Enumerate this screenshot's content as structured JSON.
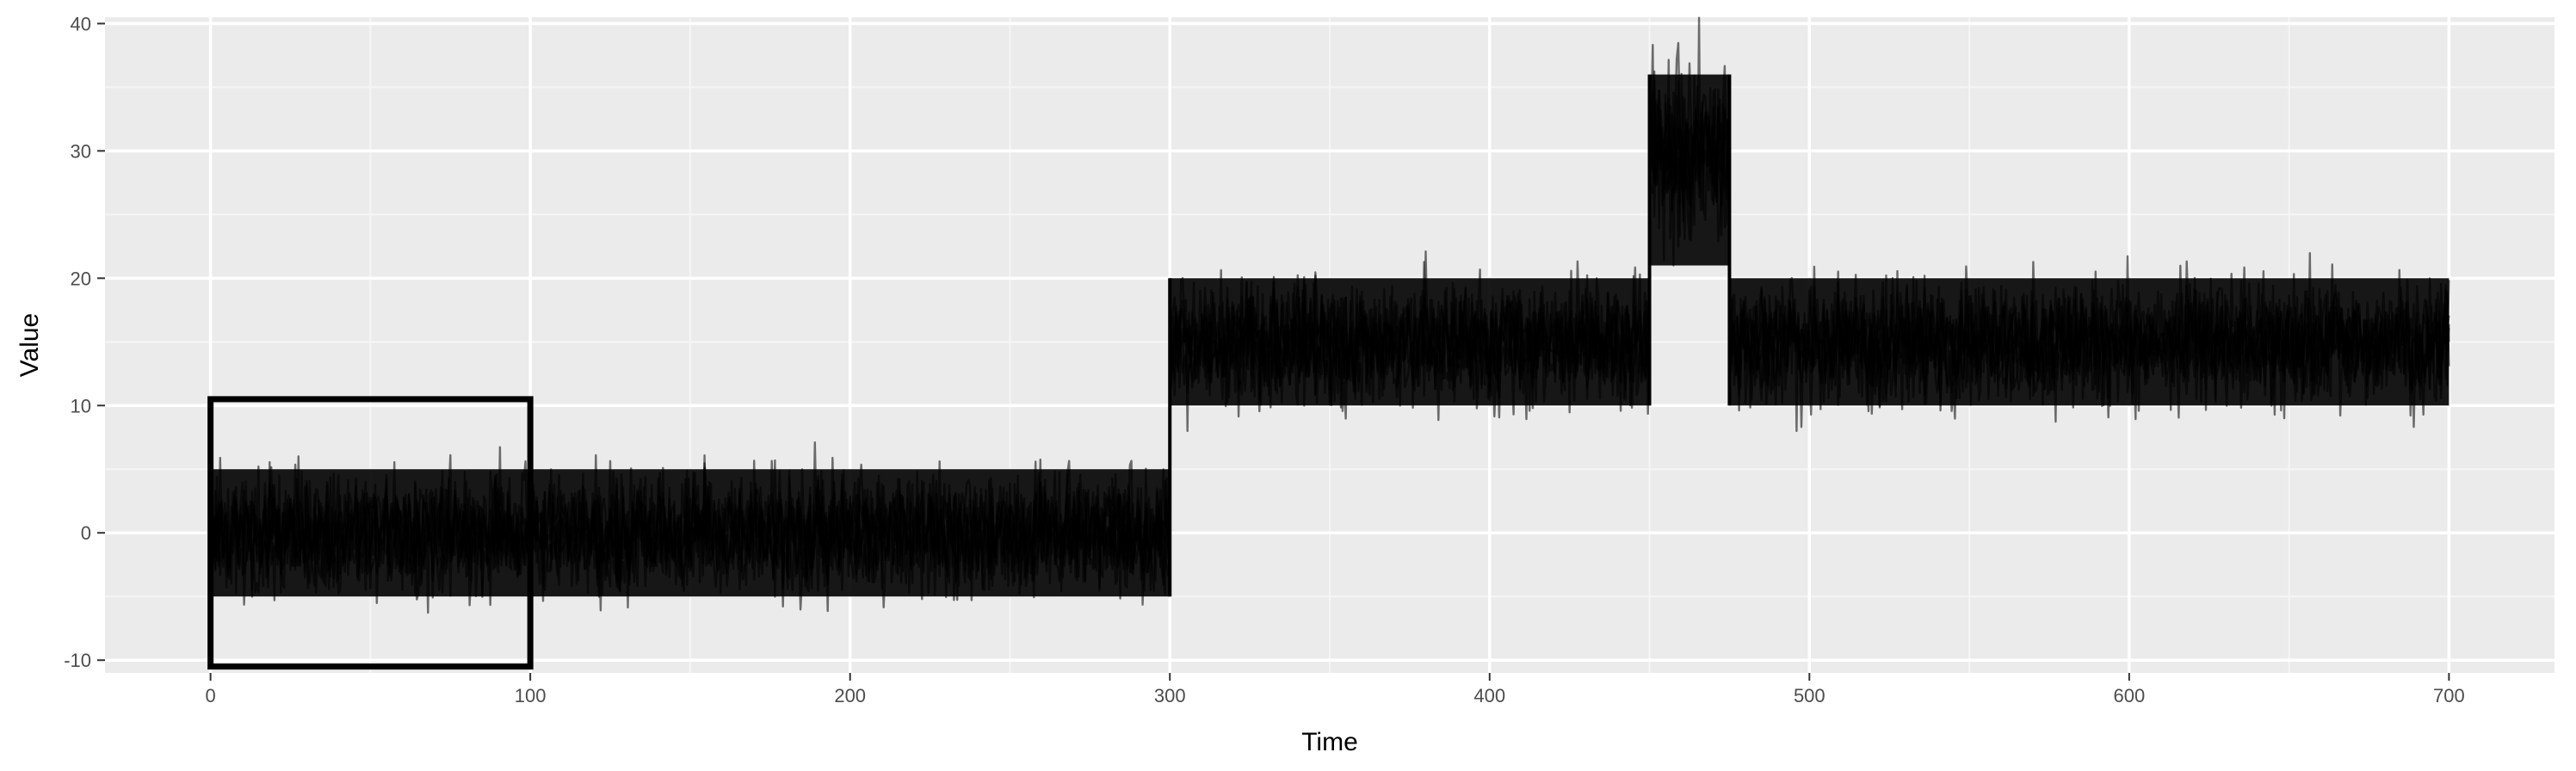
{
  "chart_data": {
    "type": "line",
    "title": "",
    "xlabel": "Time",
    "ylabel": "Value",
    "xlim": [
      -33,
      733
    ],
    "ylim": [
      -11,
      40.5
    ],
    "x_ticks": [
      0,
      100,
      200,
      300,
      400,
      500,
      600,
      700
    ],
    "y_ticks": [
      -10,
      0,
      10,
      20,
      30,
      40
    ],
    "x_tick_labels": [
      "0",
      "100",
      "200",
      "300",
      "400",
      "500",
      "600",
      "700"
    ],
    "y_tick_labels": [
      "-10",
      "0",
      "10",
      "20",
      "30",
      "40"
    ],
    "grid": true,
    "legend": "none",
    "line_color": "#000000",
    "series_style": "many overlaid noisy series (semi-transparent black)",
    "segments": [
      {
        "x_start": 0,
        "x_end": 300,
        "center": 0,
        "typical_range": [
          -5,
          5
        ],
        "extreme_range": [
          -8.5,
          8.5
        ]
      },
      {
        "x_start": 300,
        "x_end": 450,
        "center": 15,
        "typical_range": [
          10,
          20
        ],
        "extreme_range": [
          6.5,
          23
        ]
      },
      {
        "x_start": 450,
        "x_end": 475,
        "center": 30,
        "typical_range": [
          21,
          36
        ],
        "extreme_range": [
          16,
          38.2
        ]
      },
      {
        "x_start": 475,
        "x_end": 700,
        "center": 15,
        "typical_range": [
          10,
          20
        ],
        "extreme_range": [
          6.5,
          23
        ]
      }
    ],
    "annotation_box": {
      "x_start": 0,
      "x_end": 100,
      "y_start": -10.5,
      "y_end": 10.5
    }
  },
  "colors": {
    "panel_background": "#ebebeb",
    "grid_major": "#ffffff",
    "grid_minor": "#f5f5f5",
    "tick_text": "#4d4d4d",
    "data": "#000000"
  }
}
